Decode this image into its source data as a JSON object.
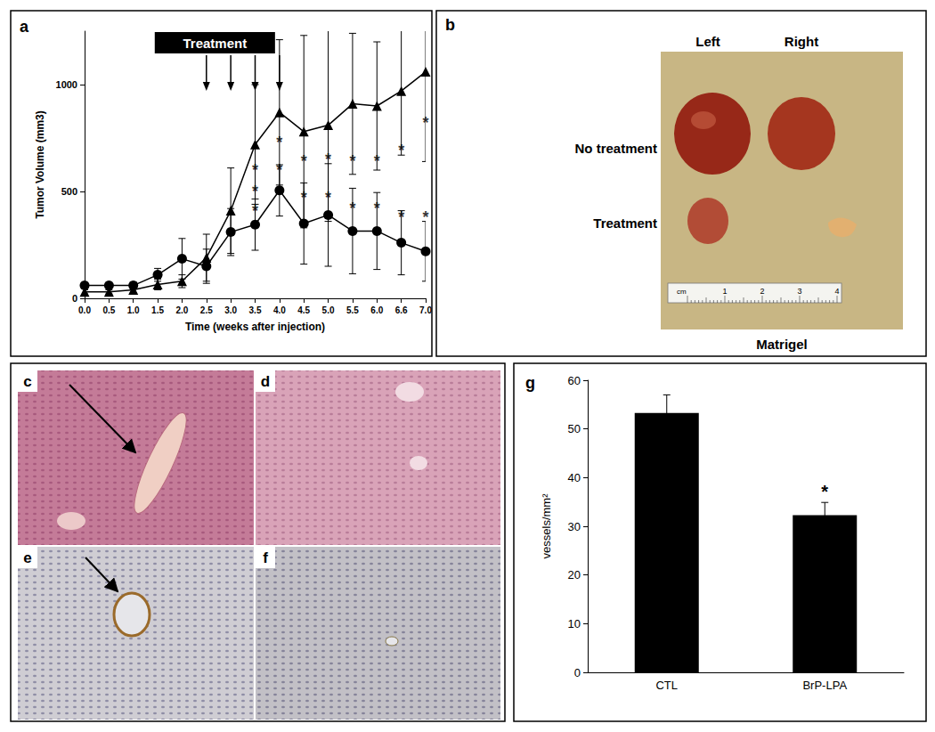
{
  "chart_data": [
    {
      "type": "line",
      "annotations": [
        {
          "text": "a"
        },
        {
          "text": "Treatment",
          "arrows": [
            "2.5",
            "3.0",
            "3.5",
            "4.0"
          ]
        }
      ],
      "xlabel": "Time (weeks after injection)",
      "ylabel": "Tumor Volume (mm3)",
      "categories": [
        "0.0",
        "0.5",
        "1.0",
        "1.5",
        "2.0",
        "2.5",
        "3.0",
        "3.5",
        "4.0",
        "4.5",
        "5.0",
        "5.5",
        "6.0",
        "6.6",
        "7.0"
      ],
      "series": [
        {
          "marker": "triangle",
          "color": "#000000",
          "values": [
            30,
            30,
            40,
            65,
            80,
            190,
            410,
            720,
            870,
            780,
            810,
            910,
            900,
            970,
            1060
          ],
          "errors": [
            10,
            10,
            15,
            25,
            30,
            110,
            200,
            280,
            340,
            450,
            450,
            330,
            300,
            300,
            420
          ]
        },
        {
          "marker": "circle",
          "color": "#000000",
          "values": [
            60,
            60,
            60,
            110,
            185,
            150,
            310,
            345,
            505,
            350,
            390,
            315,
            315,
            260,
            220
          ],
          "errors": [
            10,
            10,
            15,
            30,
            95,
            80,
            110,
            120,
            120,
            190,
            240,
            200,
            180,
            150,
            140
          ]
        },
        {
          "name": "*",
          "type": "scatter",
          "marker": "asterisk",
          "color": "#000000",
          "x": [
            "3.5",
            "3.5",
            "3.5",
            "4.0",
            "4.0",
            "4.5",
            "4.5",
            "5.0",
            "5.0",
            "5.5",
            "5.5",
            "6.0",
            "6.0",
            "6.6",
            "6.6",
            "7.0",
            "7.0"
          ],
          "values": [
            600,
            500,
            410,
            730,
            600,
            640,
            470,
            650,
            470,
            640,
            420,
            640,
            420,
            690,
            380,
            820,
            380
          ]
        }
      ],
      "ylim": [
        0,
        1250
      ],
      "yticks": [
        0,
        500,
        1000
      ],
      "grid": false
    },
    {
      "type": "bar",
      "annotations": [
        {
          "text": "g"
        },
        {
          "text": "*",
          "category": "BrP-LPA"
        }
      ],
      "ylabel": "vessels/mm²",
      "categories": [
        "CTL",
        "BrP-LPA"
      ],
      "values": [
        53.3,
        32.3
      ],
      "errors": [
        3.7,
        2.6
      ],
      "color": "#000000",
      "ylim": [
        0,
        60
      ],
      "yticks": [
        0,
        10,
        20,
        30,
        40,
        50,
        60
      ],
      "grid": false
    }
  ],
  "panels": {
    "b": {
      "label": "b",
      "columns": [
        "Left",
        "Right"
      ],
      "rows": [
        "No treatment",
        "Treatment"
      ],
      "caption": "Matrigel",
      "ruler": {
        "unit": "cm",
        "marks": [
          1,
          2,
          3,
          4
        ]
      }
    },
    "images": [
      {
        "label": "c"
      },
      {
        "label": "d"
      },
      {
        "label": "e"
      },
      {
        "label": "f"
      }
    ]
  }
}
